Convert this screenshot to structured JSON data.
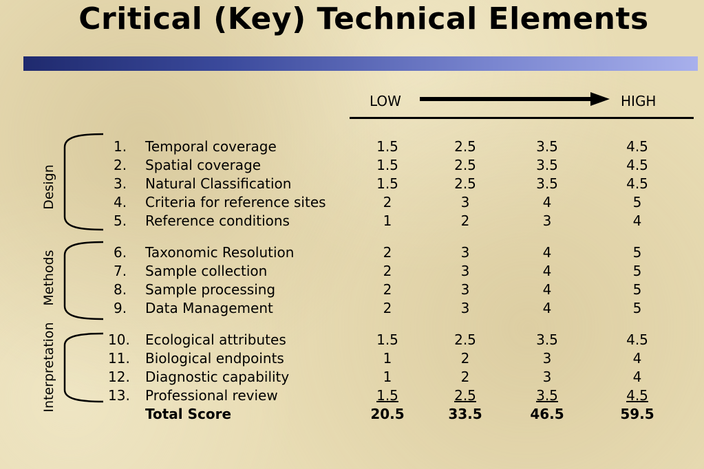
{
  "title": "Critical (Key) Technical Elements",
  "scale": {
    "low": "LOW",
    "high": "HIGH"
  },
  "groups": {
    "design": "Design",
    "methods": "Methods",
    "interpretation": "Interpretation"
  },
  "rows": [
    {
      "num": "1.",
      "label": "Temporal coverage",
      "v": [
        "1.5",
        "2.5",
        "3.5",
        "4.5"
      ]
    },
    {
      "num": "2.",
      "label": "Spatial coverage",
      "v": [
        "1.5",
        "2.5",
        "3.5",
        "4.5"
      ]
    },
    {
      "num": "3.",
      "label": "Natural Classification",
      "v": [
        "1.5",
        "2.5",
        "3.5",
        "4.5"
      ]
    },
    {
      "num": "4.",
      "label": "Criteria for reference sites",
      "v": [
        "2",
        "3",
        "4",
        "5"
      ]
    },
    {
      "num": "5.",
      "label": "Reference conditions",
      "v": [
        "1",
        "2",
        "3",
        "4"
      ]
    },
    {
      "num": "6.",
      "label": "Taxonomic Resolution",
      "v": [
        "2",
        "3",
        "4",
        "5"
      ]
    },
    {
      "num": "7.",
      "label": "Sample collection",
      "v": [
        "2",
        "3",
        "4",
        "5"
      ]
    },
    {
      "num": "8.",
      "label": "Sample processing",
      "v": [
        "2",
        "3",
        "4",
        "5"
      ]
    },
    {
      "num": "9.",
      "label": "Data Management",
      "v": [
        "2",
        "3",
        "4",
        "5"
      ]
    },
    {
      "num": "10.",
      "label": "Ecological attributes",
      "v": [
        "1.5",
        "2.5",
        "3.5",
        "4.5"
      ]
    },
    {
      "num": "11.",
      "label": "Biological endpoints",
      "v": [
        "1",
        "2",
        "3",
        "4"
      ]
    },
    {
      "num": "12.",
      "label": "Diagnostic capability",
      "v": [
        "1",
        "2",
        "3",
        "4"
      ]
    },
    {
      "num": "13.",
      "label": "Professional review",
      "v": [
        "1.5",
        "2.5",
        "3.5",
        "4.5"
      ]
    }
  ],
  "total": {
    "label": "Total Score",
    "v": [
      "20.5",
      "33.5",
      "46.5",
      "59.5"
    ]
  },
  "colors": {
    "band_start": "#1f2a6e",
    "band_end": "#a8b0ec",
    "background": "#e8dcb4"
  }
}
